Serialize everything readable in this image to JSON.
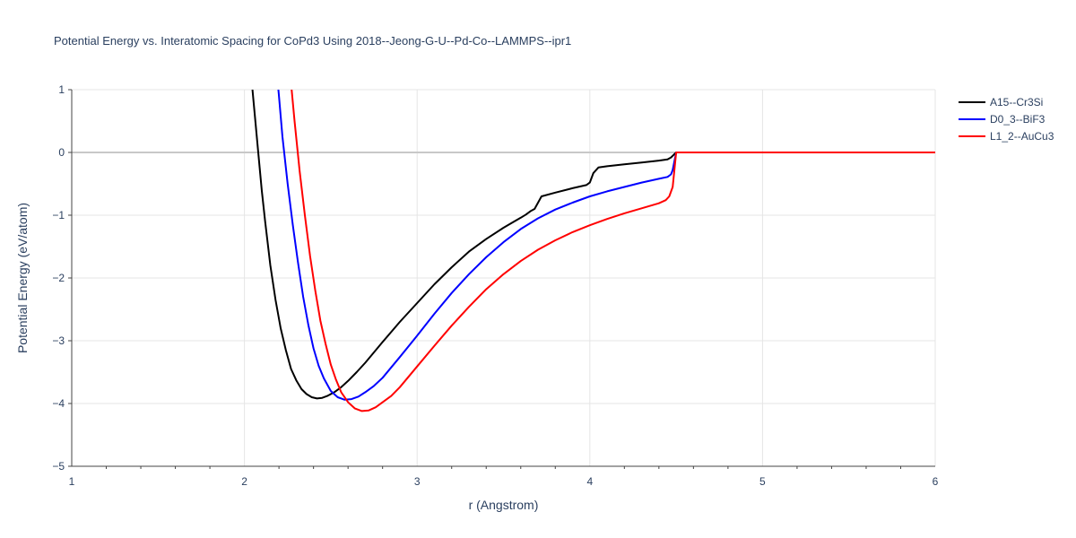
{
  "chart_data": {
    "type": "line",
    "title": "Potential Energy vs. Interatomic Spacing for CoPd3 Using 2018--Jeong-G-U--Pd-Co--LAMMPS--ipr1",
    "xlabel": "r (Angstrom)",
    "ylabel": "Potential Energy (eV/atom)",
    "xlim": [
      1,
      6
    ],
    "ylim": [
      -5,
      1
    ],
    "xticks": [
      1,
      2,
      3,
      4,
      5,
      6
    ],
    "yticks": [
      1,
      0,
      -1,
      -2,
      -3,
      -4,
      -5
    ],
    "ytick_labels": [
      "1",
      "0",
      "−1",
      "−2",
      "−3",
      "−4",
      "−5"
    ],
    "grid": true,
    "legend_position": "top-right",
    "series": [
      {
        "name": "A15--Cr3Si",
        "color": "#000000",
        "x": [
          2.03,
          2.05,
          2.08,
          2.1,
          2.12,
          2.15,
          2.18,
          2.21,
          2.24,
          2.27,
          2.3,
          2.33,
          2.36,
          2.39,
          2.42,
          2.45,
          2.48,
          2.52,
          2.56,
          2.6,
          2.65,
          2.7,
          2.8,
          2.9,
          3.0,
          3.1,
          3.2,
          3.3,
          3.4,
          3.5,
          3.55,
          3.6,
          3.63,
          3.66,
          3.68,
          3.72,
          3.8,
          3.9,
          3.98,
          4.0,
          4.02,
          4.05,
          4.1,
          4.2,
          4.3,
          4.4,
          4.45,
          4.47,
          4.5,
          4.6,
          5.0,
          5.5,
          6.0
        ],
        "y": [
          1.5,
          0.9,
          0.0,
          -0.6,
          -1.1,
          -1.8,
          -2.35,
          -2.8,
          -3.15,
          -3.45,
          -3.63,
          -3.77,
          -3.85,
          -3.9,
          -3.92,
          -3.91,
          -3.88,
          -3.82,
          -3.74,
          -3.64,
          -3.5,
          -3.35,
          -3.02,
          -2.7,
          -2.4,
          -2.1,
          -1.83,
          -1.58,
          -1.38,
          -1.2,
          -1.12,
          -1.04,
          -0.99,
          -0.93,
          -0.9,
          -0.7,
          -0.64,
          -0.57,
          -0.52,
          -0.48,
          -0.33,
          -0.24,
          -0.22,
          -0.19,
          -0.16,
          -0.13,
          -0.11,
          -0.08,
          0.0,
          0.0,
          0.0,
          0.0,
          0.0
        ]
      },
      {
        "name": "D0_3--BiF3",
        "color": "#0000ff",
        "x": [
          2.18,
          2.2,
          2.22,
          2.25,
          2.28,
          2.31,
          2.34,
          2.37,
          2.4,
          2.43,
          2.46,
          2.5,
          2.54,
          2.58,
          2.62,
          2.66,
          2.7,
          2.75,
          2.8,
          2.9,
          3.0,
          3.1,
          3.2,
          3.3,
          3.4,
          3.5,
          3.6,
          3.7,
          3.8,
          3.9,
          4.0,
          4.1,
          4.2,
          4.3,
          4.4,
          4.45,
          4.47,
          4.48,
          4.5,
          4.6,
          5.0,
          5.5,
          6.0
        ],
        "y": [
          1.5,
          0.9,
          0.25,
          -0.5,
          -1.15,
          -1.75,
          -2.3,
          -2.75,
          -3.12,
          -3.4,
          -3.6,
          -3.8,
          -3.9,
          -3.94,
          -3.93,
          -3.89,
          -3.82,
          -3.72,
          -3.59,
          -3.26,
          -2.92,
          -2.57,
          -2.24,
          -1.94,
          -1.67,
          -1.43,
          -1.22,
          -1.05,
          -0.91,
          -0.8,
          -0.7,
          -0.62,
          -0.55,
          -0.48,
          -0.42,
          -0.39,
          -0.35,
          -0.28,
          0.0,
          0.0,
          0.0,
          0.0,
          0.0
        ]
      },
      {
        "name": "L1_2--AuCu3",
        "color": "#ff0000",
        "x": [
          2.25,
          2.27,
          2.29,
          2.32,
          2.35,
          2.38,
          2.41,
          2.44,
          2.47,
          2.5,
          2.53,
          2.56,
          2.6,
          2.64,
          2.68,
          2.72,
          2.76,
          2.8,
          2.85,
          2.9,
          3.0,
          3.1,
          3.2,
          3.3,
          3.4,
          3.5,
          3.6,
          3.7,
          3.8,
          3.9,
          4.0,
          4.1,
          4.2,
          4.3,
          4.4,
          4.44,
          4.46,
          4.48,
          4.5,
          4.6,
          5.0,
          5.5,
          6.0
        ],
        "y": [
          1.5,
          1.1,
          0.5,
          -0.3,
          -1.0,
          -1.65,
          -2.2,
          -2.68,
          -3.05,
          -3.38,
          -3.62,
          -3.82,
          -3.98,
          -4.08,
          -4.12,
          -4.11,
          -4.06,
          -3.98,
          -3.88,
          -3.74,
          -3.41,
          -3.08,
          -2.76,
          -2.46,
          -2.18,
          -1.94,
          -1.73,
          -1.55,
          -1.4,
          -1.27,
          -1.16,
          -1.06,
          -0.97,
          -0.89,
          -0.81,
          -0.76,
          -0.7,
          -0.55,
          0.0,
          0.0,
          0.0,
          0.0,
          0.0
        ]
      }
    ]
  }
}
